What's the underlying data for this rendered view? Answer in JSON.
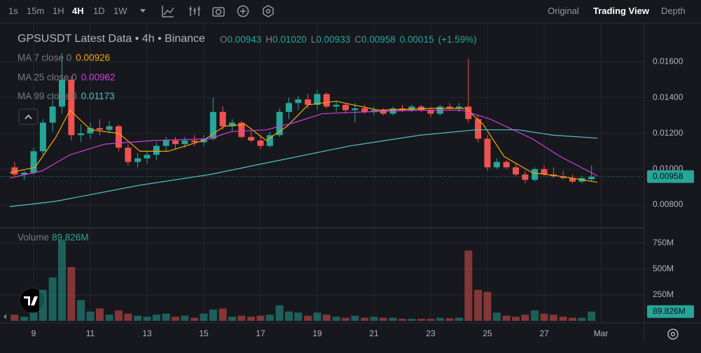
{
  "toolbar": {
    "intervals": [
      "1s",
      "15m",
      "1H",
      "4H",
      "1D",
      "1W"
    ],
    "views": [
      "Original",
      "Trading View",
      "Depth"
    ]
  },
  "chart_data": {
    "type": "candlestick",
    "title": "GPSUSDT Latest Data • 4h • Binance",
    "ohlc": {
      "labels": [
        "O",
        "H",
        "L",
        "C"
      ],
      "values": [
        "0.00943",
        "0.01020",
        "0.00933",
        "0.00958"
      ],
      "change": "0.00015",
      "change_pct": "(+1.59%)"
    },
    "up_color": "#26a69a",
    "down_color": "#ef5350",
    "x": [
      8.33,
      8.67,
      9,
      9.33,
      9.67,
      10,
      10.33,
      10.67,
      11,
      11.33,
      11.67,
      12,
      12.33,
      12.67,
      13,
      13.33,
      13.67,
      14,
      14.33,
      14.67,
      15,
      15.33,
      15.67,
      16,
      16.33,
      16.67,
      17,
      17.33,
      17.67,
      18,
      18.33,
      18.67,
      19,
      19.33,
      19.67,
      20,
      20.33,
      20.67,
      21,
      21.33,
      21.67,
      22,
      22.33,
      22.67,
      23,
      23.33,
      23.67,
      24,
      24.33,
      24.67,
      25,
      25.33,
      25.67,
      26,
      26.33,
      26.67,
      27,
      27.33,
      27.67,
      28,
      28.33,
      28.67
    ],
    "open": [
      0.0101,
      0.0097,
      0.0098,
      0.011,
      0.0126,
      0.0135,
      0.015,
      0.0119,
      0.012,
      0.0123,
      0.0122,
      0.0124,
      0.0112,
      0.0104,
      0.0106,
      0.0108,
      0.0113,
      0.0116,
      0.0114,
      0.0116,
      0.0115,
      0.0117,
      0.0132,
      0.0124,
      0.0126,
      0.0118,
      0.0116,
      0.0113,
      0.0119,
      0.0132,
      0.0137,
      0.0139,
      0.0136,
      0.0142,
      0.0135,
      0.0136,
      0.0133,
      0.0134,
      0.0132,
      0.0133,
      0.0131,
      0.0134,
      0.0133,
      0.0135,
      0.0133,
      0.0131,
      0.0135,
      0.0134,
      0.0135,
      0.0128,
      0.0117,
      0.0101,
      0.0104,
      0.0101,
      0.0097,
      0.0094,
      0.01,
      0.0097,
      0.0096,
      0.0095,
      0.0093,
      0.00943
    ],
    "high": [
      0.0104,
      0.0099,
      0.0112,
      0.0128,
      0.0139,
      0.0165,
      0.0152,
      0.0125,
      0.0126,
      0.0128,
      0.0127,
      0.0125,
      0.0114,
      0.0109,
      0.011,
      0.0115,
      0.0118,
      0.0118,
      0.0118,
      0.0119,
      0.0119,
      0.014,
      0.0135,
      0.0128,
      0.0127,
      0.0121,
      0.0119,
      0.0121,
      0.0134,
      0.014,
      0.0141,
      0.0142,
      0.0144,
      0.0143,
      0.0138,
      0.0137,
      0.0137,
      0.0136,
      0.0135,
      0.0134,
      0.0135,
      0.0136,
      0.0136,
      0.0136,
      0.0135,
      0.0136,
      0.0137,
      0.0137,
      0.0162,
      0.013,
      0.0119,
      0.0106,
      0.0105,
      0.0103,
      0.0099,
      0.0101,
      0.0102,
      0.0101,
      0.0099,
      0.0097,
      0.0096,
      0.0102
    ],
    "low": [
      0.0096,
      0.0094,
      0.0097,
      0.0108,
      0.0121,
      0.0131,
      0.0116,
      0.0115,
      0.0117,
      0.0119,
      0.012,
      0.011,
      0.0102,
      0.0101,
      0.0103,
      0.0105,
      0.011,
      0.0111,
      0.0112,
      0.0113,
      0.0113,
      0.0116,
      0.0122,
      0.0121,
      0.0117,
      0.0115,
      0.0111,
      0.0112,
      0.0118,
      0.0128,
      0.0133,
      0.0134,
      0.0133,
      0.0134,
      0.0132,
      0.0131,
      0.0126,
      0.0131,
      0.013,
      0.013,
      0.013,
      0.0132,
      0.0132,
      0.0132,
      0.0129,
      0.013,
      0.0133,
      0.0132,
      0.0126,
      0.0115,
      0.0099,
      0.01,
      0.01,
      0.0096,
      0.0092,
      0.0093,
      0.0096,
      0.0095,
      0.0094,
      0.0092,
      0.0092,
      0.00933
    ],
    "close": [
      0.0097,
      0.0098,
      0.011,
      0.0126,
      0.0135,
      0.015,
      0.0119,
      0.012,
      0.0123,
      0.0122,
      0.0124,
      0.0112,
      0.0104,
      0.0106,
      0.0108,
      0.0113,
      0.0116,
      0.0114,
      0.0116,
      0.0115,
      0.0117,
      0.0132,
      0.0124,
      0.0126,
      0.0118,
      0.0116,
      0.0113,
      0.0119,
      0.0132,
      0.0137,
      0.0139,
      0.0136,
      0.0142,
      0.0135,
      0.0136,
      0.0133,
      0.0134,
      0.0132,
      0.0133,
      0.0131,
      0.0134,
      0.0133,
      0.0135,
      0.0133,
      0.0131,
      0.0135,
      0.0134,
      0.0135,
      0.0128,
      0.0117,
      0.0101,
      0.0104,
      0.0101,
      0.0097,
      0.0094,
      0.01,
      0.0097,
      0.0096,
      0.0095,
      0.0093,
      0.0095,
      0.00958
    ],
    "volume": [
      60,
      40,
      80,
      300,
      420,
      780,
      520,
      200,
      90,
      120,
      60,
      100,
      70,
      50,
      40,
      60,
      70,
      40,
      50,
      30,
      70,
      110,
      120,
      40,
      50,
      40,
      50,
      60,
      150,
      90,
      80,
      50,
      80,
      60,
      40,
      30,
      50,
      30,
      40,
      30,
      30,
      20,
      20,
      20,
      20,
      30,
      25,
      30,
      680,
      300,
      280,
      80,
      50,
      40,
      60,
      100,
      70,
      60,
      40,
      30,
      30,
      89.826
    ],
    "ma": [
      {
        "name": "MA 7 close 0",
        "color": "#f7a600",
        "x": [
          8.16,
          9.05,
          9.79,
          10.28,
          11.02,
          12.01,
          12.75,
          13.74,
          14.98,
          15.72,
          16.46,
          17.2,
          17.94,
          18.68,
          19.67,
          21.15,
          23.12,
          24.23,
          24.85,
          25.59,
          26.58,
          27.57,
          28.88
        ],
        "values": [
          0.0098,
          0.0101,
          0.0118,
          0.0133,
          0.0122,
          0.012,
          0.011,
          0.011,
          0.0116,
          0.0124,
          0.0125,
          0.0116,
          0.0124,
          0.0136,
          0.0138,
          0.0133,
          0.0134,
          0.0134,
          0.0125,
          0.0107,
          0.0098,
          0.0096,
          0.00926
        ]
      },
      {
        "name": "MA 25 close 0",
        "color": "#d63ce0",
        "x": [
          8.16,
          9.3,
          10.28,
          11.52,
          13.25,
          15.22,
          15.96,
          17.2,
          18.19,
          19.17,
          20.65,
          22.63,
          24.11,
          25.1,
          26.58,
          27.57,
          28.88
        ],
        "values": [
          0.0095,
          0.0099,
          0.0108,
          0.0114,
          0.0116,
          0.0117,
          0.0121,
          0.0122,
          0.0126,
          0.0131,
          0.0132,
          0.0133,
          0.0133,
          0.0128,
          0.0117,
          0.0107,
          0.00962
        ]
      },
      {
        "name": "MA 99 close 0",
        "color": "#4fc3c7",
        "x": [
          8.16,
          9.79,
          12.75,
          15.22,
          17.69,
          20.16,
          22.63,
          24.6,
          26.09,
          27.32,
          28.88
        ],
        "values": [
          0.0079,
          0.0082,
          0.0091,
          0.0097,
          0.0105,
          0.0113,
          0.0119,
          0.0122,
          0.0122,
          0.0119,
          0.01173
        ]
      }
    ],
    "xlim": [
      7.815,
      30.53
    ],
    "xticks": [
      9,
      11,
      13,
      15,
      17,
      19,
      21,
      23,
      25,
      27,
      {
        "value": 29,
        "label": "Mar"
      }
    ],
    "ylim": [
      0.00675,
      0.0179
    ],
    "yticks": [
      {
        "value": 0.008,
        "label": "0.00800"
      },
      {
        "value": 0.01,
        "label": "0.01000"
      },
      {
        "value": 0.012,
        "label": "0.01200"
      },
      {
        "value": 0.014,
        "label": "0.01400"
      },
      {
        "value": 0.016,
        "label": "0.01600"
      }
    ],
    "last_price": {
      "value": 0.00958,
      "label": "0.00958"
    },
    "volume_label": "Volume",
    "volume_ylim": [
      0,
      872
    ],
    "volume_yticks": [
      {
        "value": 250,
        "label": "250M"
      },
      {
        "value": 500,
        "label": "500M"
      },
      {
        "value": 750,
        "label": "750M"
      }
    ],
    "last_volume": {
      "value": 89.826,
      "label": "89.826M"
    },
    "grid": true
  }
}
